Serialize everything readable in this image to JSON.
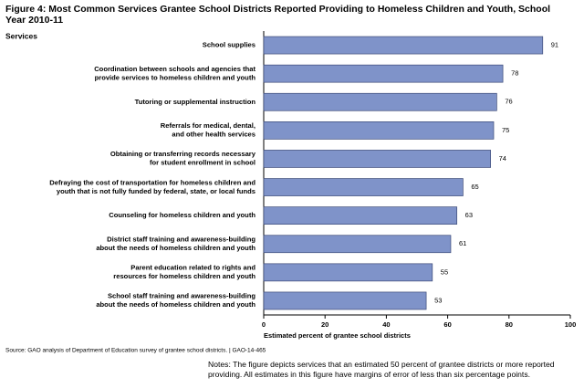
{
  "chart_data": {
    "type": "barh",
    "title": "Figure 4: Most Common Services Grantee School Districts Reported Providing to Homeless Children and Youth, School Year 2010-11",
    "y_axis_label": "Services",
    "x_axis_label": "Estimated percent of grantee school districts",
    "categories": [
      [
        "School supplies"
      ],
      [
        "Coordination between schools and agencies that",
        "provide services to homeless children and youth"
      ],
      [
        "Tutoring or supplemental instruction"
      ],
      [
        "Referrals for medical, dental,",
        "and other health services"
      ],
      [
        "Obtaining or transferring records necessary",
        "for student enrollment in school"
      ],
      [
        "Defraying the cost of transportation for homeless children and",
        "youth that is not fully funded by federal, state, or local funds"
      ],
      [
        "Counseling for homeless children and youth"
      ],
      [
        "District staff training and awareness-building",
        "about the needs of homeless children and youth"
      ],
      [
        "Parent education related to rights and",
        "resources for homeless children and youth"
      ],
      [
        "School staff training and awareness-building",
        "about the needs of homeless children and youth"
      ]
    ],
    "values": [
      91,
      78,
      76,
      75,
      74,
      65,
      63,
      61,
      55,
      53
    ],
    "color": "#7f93c9",
    "xlim": [
      0,
      100
    ],
    "xticks": [
      0,
      20,
      40,
      60,
      80,
      100
    ],
    "source": "Source: GAO analysis of Department of Education survey of grantee school districts.  |  GAO-14-465",
    "notes": "Notes: The figure depicts services that an estimated 50 percent of grantee districts or more reported providing. All estimates in this figure have margins of error of less than six percentage points."
  }
}
